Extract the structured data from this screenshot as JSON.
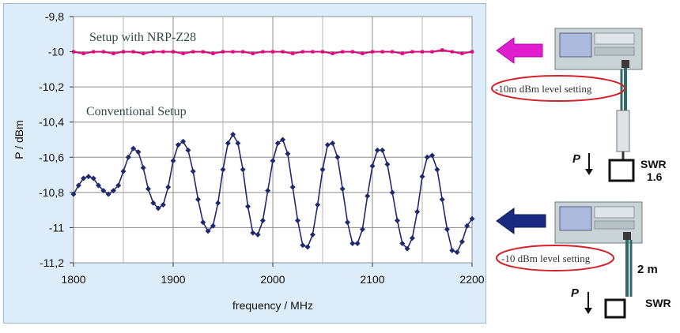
{
  "chart_data": {
    "type": "line",
    "xlabel": "frequency / MHz",
    "ylabel": "P / dBm",
    "xlim": [
      1800,
      2200
    ],
    "ylim": [
      -11.2,
      -9.8
    ],
    "x_ticks": [
      "1800",
      "1900",
      "2000",
      "2100",
      "2200"
    ],
    "y_ticks": [
      "-9,8",
      "-10",
      "-10,2",
      "-10,4",
      "-10,6",
      "-10,8",
      "-11",
      "-11,2"
    ],
    "grid": true,
    "annotations": [
      "Setup with NRP-Z28",
      "Conventional Setup"
    ],
    "series": [
      {
        "name": "Setup with NRP-Z28",
        "color": "#e0007a",
        "x": [
          1800,
          1810,
          1820,
          1830,
          1840,
          1850,
          1860,
          1870,
          1880,
          1890,
          1900,
          1910,
          1920,
          1930,
          1940,
          1950,
          1960,
          1970,
          1980,
          1990,
          2000,
          2010,
          2020,
          2030,
          2040,
          2050,
          2060,
          2070,
          2080,
          2090,
          2100,
          2110,
          2120,
          2130,
          2140,
          2150,
          2160,
          2170,
          2180,
          2190,
          2200
        ],
        "y": [
          -10.0,
          -10.01,
          -10.0,
          -10.0,
          -10.01,
          -10.0,
          -10.0,
          -10.01,
          -10.0,
          -10.0,
          -10.0,
          -10.01,
          -10.0,
          -10.0,
          -10.01,
          -10.0,
          -10.0,
          -10.0,
          -10.01,
          -10.0,
          -10.0,
          -10.0,
          -10.01,
          -10.0,
          -10.0,
          -10.0,
          -10.01,
          -10.0,
          -10.0,
          -10.01,
          -10.0,
          -10.0,
          -10.0,
          -10.01,
          -10.0,
          -10.0,
          -10.0,
          -9.99,
          -10.0,
          -10.01,
          -10.0
        ]
      },
      {
        "name": "Conventional Setup",
        "color": "#1f2a6e",
        "x": [
          1800,
          1805,
          1810,
          1815,
          1820,
          1825,
          1830,
          1835,
          1840,
          1845,
          1850,
          1855,
          1860,
          1865,
          1870,
          1875,
          1880,
          1885,
          1890,
          1895,
          1900,
          1905,
          1910,
          1915,
          1920,
          1925,
          1930,
          1935,
          1940,
          1945,
          1950,
          1955,
          1960,
          1965,
          1970,
          1975,
          1980,
          1985,
          1990,
          1995,
          2000,
          2005,
          2010,
          2015,
          2020,
          2025,
          2030,
          2035,
          2040,
          2045,
          2050,
          2055,
          2060,
          2065,
          2070,
          2075,
          2080,
          2085,
          2090,
          2095,
          2100,
          2105,
          2110,
          2115,
          2120,
          2125,
          2130,
          2135,
          2140,
          2145,
          2150,
          2155,
          2160,
          2165,
          2170,
          2175,
          2180,
          2185,
          2190,
          2195,
          2200
        ],
        "y": [
          -10.81,
          -10.76,
          -10.72,
          -10.71,
          -10.72,
          -10.76,
          -10.79,
          -10.81,
          -10.79,
          -10.76,
          -10.68,
          -10.6,
          -10.55,
          -10.57,
          -10.66,
          -10.78,
          -10.86,
          -10.89,
          -10.87,
          -10.77,
          -10.62,
          -10.53,
          -10.51,
          -10.56,
          -10.68,
          -10.84,
          -10.97,
          -11.02,
          -10.99,
          -10.86,
          -10.67,
          -10.52,
          -10.47,
          -10.52,
          -10.67,
          -10.88,
          -11.03,
          -11.04,
          -10.96,
          -10.79,
          -10.62,
          -10.52,
          -10.5,
          -10.58,
          -10.77,
          -10.96,
          -11.1,
          -11.11,
          -11.04,
          -10.87,
          -10.67,
          -10.53,
          -10.52,
          -10.6,
          -10.78,
          -10.97,
          -11.09,
          -11.09,
          -11.01,
          -10.82,
          -10.65,
          -10.56,
          -10.56,
          -10.64,
          -10.8,
          -10.96,
          -11.09,
          -11.12,
          -11.06,
          -10.91,
          -10.71,
          -10.6,
          -10.59,
          -10.67,
          -10.84,
          -11.01,
          -11.13,
          -11.14,
          -11.08,
          -10.99,
          -10.95
        ]
      }
    ]
  },
  "right_panel": {
    "callout_top": "-10m dBm level setting",
    "callout_bottom": "-10 dBm level setting",
    "power_symbol": "P",
    "swr_label_top": "SWR",
    "swr_value_top": "1.6",
    "cable_length": "2 m",
    "swr_label_bottom": "SWR",
    "arrow_top_color": "#e01ecf",
    "arrow_bottom_color": "#1a2a80"
  }
}
